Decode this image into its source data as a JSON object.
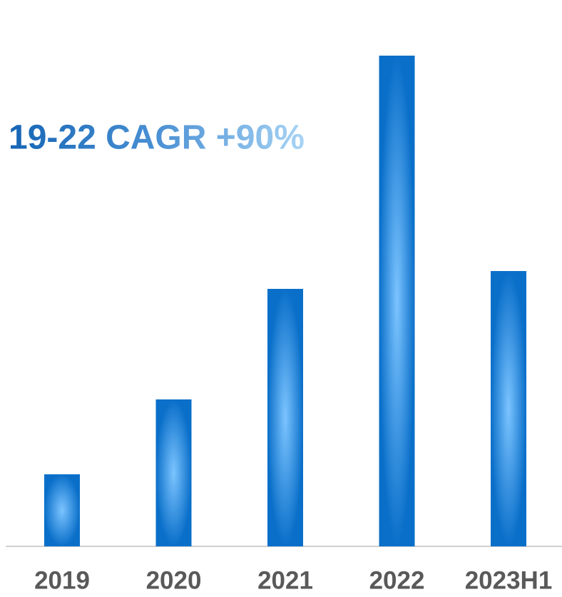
{
  "chart_data": {
    "type": "bar",
    "annotation": "19-22 CAGR +90%",
    "categories": [
      "2019",
      "2020",
      "2021",
      "2022",
      "2023H1"
    ],
    "values": [
      101,
      206,
      361,
      688,
      386
    ],
    "color": "#0a6fc9",
    "ylim": [
      0,
      700
    ]
  }
}
